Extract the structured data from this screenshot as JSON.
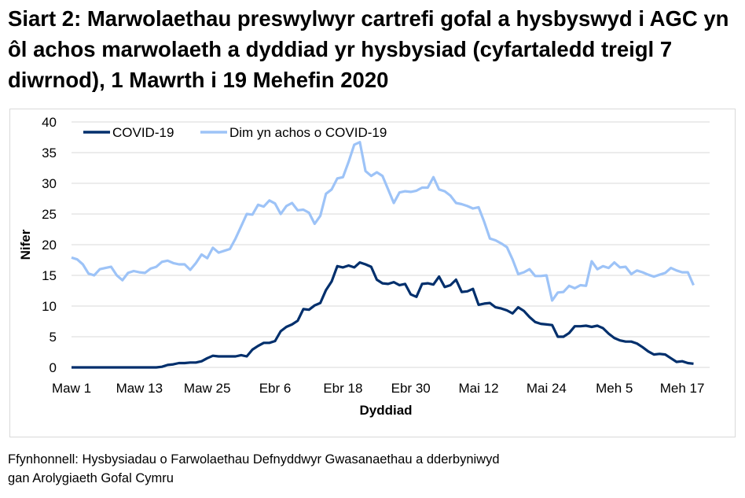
{
  "title": "Siart 2: Marwolaethau preswylwyr cartrefi gofal a hysbyswyd i AGC yn ôl achos marwolaeth a dyddiad yr hysbysiad (cyfartaledd treigl 7 diwrnod), 1 Mawrth i 19 Mehefin 2020",
  "source": [
    "Ffynhonnell: Hysbysiadau o Farwolaethau Defnyddwyr Gwasanaethau a dderbyniwyd",
    "gan Arolygiaeth Gofal Cymru"
  ],
  "chart_data": {
    "type": "line",
    "xlabel": "Dyddiad",
    "ylabel": "Nifer",
    "ylim": [
      0,
      40
    ],
    "yticks": [
      0,
      5,
      10,
      15,
      20,
      25,
      30,
      35,
      40
    ],
    "xtick_labels": [
      "Maw 1",
      "Maw 13",
      "Maw 25",
      "Ebr 6",
      "Ebr 18",
      "Ebr 30",
      "Mai 12",
      "Mai 24",
      "Meh 5",
      "Meh 17"
    ],
    "grid": true,
    "legend": "top-left",
    "series": [
      {
        "name": "COVID-19",
        "color": "#002f6c",
        "values": [
          0,
          0,
          0,
          0,
          0,
          0,
          0,
          0,
          0,
          0,
          0,
          0,
          0,
          0,
          0,
          0,
          0.1,
          0.4,
          0.5,
          0.7,
          0.7,
          0.8,
          0.8,
          1.0,
          1.5,
          1.9,
          1.8,
          1.8,
          1.8,
          1.8,
          2.0,
          1.8,
          2.9,
          3.5,
          4.0,
          4.0,
          4.3,
          5.9,
          6.6,
          7.0,
          7.6,
          9.5,
          9.4,
          10.1,
          10.5,
          12.6,
          14.0,
          16.5,
          16.3,
          16.6,
          16.3,
          17.1,
          16.8,
          16.4,
          14.3,
          13.7,
          13.6,
          13.9,
          13.4,
          13.6,
          11.9,
          11.5,
          13.6,
          13.7,
          13.5,
          14.8,
          13.1,
          13.4,
          14.3,
          12.3,
          12.4,
          12.8,
          10.2,
          10.4,
          10.5,
          9.8,
          9.6,
          9.3,
          8.8,
          9.8,
          9.2,
          8.2,
          7.4,
          7.1,
          7.0,
          6.9,
          5.0,
          5.0,
          5.6,
          6.7,
          6.7,
          6.8,
          6.6,
          6.8,
          6.4,
          5.5,
          4.8,
          4.4,
          4.2,
          4.2,
          3.9,
          3.3,
          2.6,
          2.1,
          2.2,
          2.1,
          1.5,
          0.9,
          1.0,
          0.7,
          0.6
        ]
      },
      {
        "name": "Dim yn achos o COVID-19",
        "color": "#9dc3f7",
        "values": [
          17.9,
          17.6,
          16.8,
          15.3,
          15.0,
          16.0,
          16.2,
          16.4,
          15.0,
          14.2,
          15.4,
          15.7,
          15.5,
          15.4,
          16.1,
          16.4,
          17.2,
          17.4,
          17.0,
          16.8,
          16.8,
          15.9,
          17.0,
          18.4,
          17.8,
          19.5,
          18.7,
          19.0,
          19.3,
          21.0,
          23.0,
          25.0,
          24.9,
          26.5,
          26.2,
          27.2,
          26.7,
          25.0,
          26.3,
          26.8,
          25.6,
          25.7,
          25.2,
          23.4,
          24.7,
          28.3,
          29.0,
          30.8,
          31.0,
          33.5,
          36.3,
          36.7,
          32.0,
          31.2,
          31.8,
          31.2,
          29.0,
          26.8,
          28.5,
          28.7,
          28.6,
          28.8,
          29.3,
          29.3,
          31.0,
          29.0,
          28.7,
          28.0,
          26.8,
          26.6,
          26.3,
          25.9,
          26.1,
          23.7,
          21.0,
          20.7,
          20.2,
          19.6,
          17.6,
          15.2,
          15.5,
          16.0,
          14.9,
          14.9,
          15.0,
          10.9,
          12.2,
          12.3,
          13.3,
          12.9,
          13.4,
          13.3,
          17.3,
          16.0,
          16.5,
          16.2,
          17.1,
          16.3,
          16.4,
          15.2,
          15.8,
          15.5,
          15.1,
          14.8,
          15.1,
          15.4,
          16.2,
          15.8,
          15.5,
          15.5,
          13.4
        ]
      }
    ]
  }
}
